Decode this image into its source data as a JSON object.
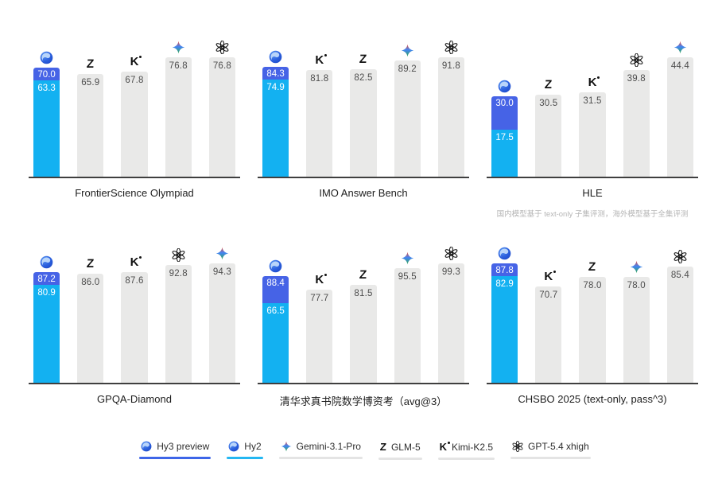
{
  "colors": {
    "hy3_blue": "#4663E6",
    "hy2_cyan": "#13B1F1",
    "bar_gray": "#E9E9E8",
    "axis": "#3F3F3F",
    "gray_label": "#4D4D4D",
    "legend_underline_gray": "#E4E4E4"
  },
  "icons": {
    "hunyuan": {
      "name": "hunyuan-sphere-icon"
    },
    "glm": {
      "name": "glm-z-icon",
      "glyph": "Z"
    },
    "kimi": {
      "name": "kimi-k-icon",
      "glyph": "K"
    },
    "gemini": {
      "name": "gemini-star-icon"
    },
    "openai": {
      "name": "openai-logo-icon"
    }
  },
  "chart_data": [
    {
      "type": "bar",
      "title": "FrontierScience Olympiad",
      "footnote": "",
      "ylim": [
        0,
        80
      ],
      "bars": [
        {
          "model": "hunyuan",
          "stacked": true,
          "series": [
            {
              "name": "Hy3 preview",
              "value": 70.0
            },
            {
              "name": "Hy2",
              "value": 63.3
            }
          ]
        },
        {
          "model": "glm",
          "name": "GLM-5",
          "value": 65.9
        },
        {
          "model": "kimi",
          "name": "Kimi-K2.5",
          "value": 67.8
        },
        {
          "model": "gemini",
          "name": "Gemini-3.1-Pro",
          "value": 76.8
        },
        {
          "model": "openai",
          "name": "GPT-5.4 xhigh",
          "value": 76.8
        }
      ]
    },
    {
      "type": "bar",
      "title": "IMO Answer Bench",
      "footnote": "",
      "ylim": [
        0,
        95
      ],
      "bars": [
        {
          "model": "hunyuan",
          "stacked": true,
          "series": [
            {
              "name": "Hy3 preview",
              "value": 84.3
            },
            {
              "name": "Hy2",
              "value": 74.9
            }
          ]
        },
        {
          "model": "kimi",
          "name": "Kimi-K2.5",
          "value": 81.8
        },
        {
          "model": "glm",
          "name": "GLM-5",
          "value": 82.5
        },
        {
          "model": "gemini",
          "name": "Gemini-3.1-Pro",
          "value": 89.2
        },
        {
          "model": "openai",
          "name": "GPT-5.4 xhigh",
          "value": 91.8
        }
      ]
    },
    {
      "type": "bar",
      "title": "HLE",
      "footnote": "国内模型基于 text-only 子集评测，海外模型基于全集评测",
      "ylim": [
        0,
        46
      ],
      "bars": [
        {
          "model": "hunyuan",
          "stacked": true,
          "series": [
            {
              "name": "Hy3 preview",
              "value": 30.0
            },
            {
              "name": "Hy2",
              "value": 17.5
            }
          ]
        },
        {
          "model": "glm",
          "name": "GLM-5",
          "value": 30.5
        },
        {
          "model": "kimi",
          "name": "Kimi-K2.5",
          "value": 31.5
        },
        {
          "model": "openai",
          "name": "GPT-5.4 xhigh",
          "value": 39.8
        },
        {
          "model": "gemini",
          "name": "Gemini-3.1-Pro",
          "value": 44.4
        }
      ]
    },
    {
      "type": "bar",
      "title": "GPQA-Diamond",
      "footnote": "",
      "ylim": [
        0,
        98
      ],
      "bars": [
        {
          "model": "hunyuan",
          "stacked": true,
          "series": [
            {
              "name": "Hy3 preview",
              "value": 87.2
            },
            {
              "name": "Hy2",
              "value": 80.9
            }
          ]
        },
        {
          "model": "glm",
          "name": "GLM-5",
          "value": 86.0
        },
        {
          "model": "kimi",
          "name": "Kimi-K2.5",
          "value": 87.6
        },
        {
          "model": "openai",
          "name": "GPT-5.4 xhigh",
          "value": 92.8
        },
        {
          "model": "gemini",
          "name": "Gemini-3.1-Pro",
          "value": 94.3
        }
      ]
    },
    {
      "type": "bar",
      "title": "清华求真书院数学博资考（avg@3）",
      "footnote": "",
      "ylim": [
        0,
        103
      ],
      "bars": [
        {
          "model": "hunyuan",
          "stacked": true,
          "series": [
            {
              "name": "Hy3 preview",
              "value": 88.4
            },
            {
              "name": "Hy2",
              "value": 66.5
            }
          ]
        },
        {
          "model": "kimi",
          "name": "Kimi-K2.5",
          "value": 77.7
        },
        {
          "model": "glm",
          "name": "GLM-5",
          "value": 81.5
        },
        {
          "model": "gemini",
          "name": "Gemini-3.1-Pro",
          "value": 95.5
        },
        {
          "model": "openai",
          "name": "GPT-5.4 xhigh",
          "value": 99.3
        }
      ]
    },
    {
      "type": "bar",
      "title": "CHSBO 2025 (text-only, pass^3)",
      "footnote": "",
      "ylim": [
        0,
        91
      ],
      "bars": [
        {
          "model": "hunyuan",
          "stacked": true,
          "series": [
            {
              "name": "Hy3 preview",
              "value": 87.8
            },
            {
              "name": "Hy2",
              "value": 82.9
            }
          ]
        },
        {
          "model": "kimi",
          "name": "Kimi-K2.5",
          "value": 70.7
        },
        {
          "model": "glm",
          "name": "GLM-5",
          "value": 78.0
        },
        {
          "model": "gemini",
          "name": "Gemini-3.1-Pro",
          "value": 78.0
        },
        {
          "model": "openai",
          "name": "GPT-5.4 xhigh",
          "value": 85.4
        }
      ]
    }
  ],
  "legend": {
    "items": [
      {
        "model": "hunyuan",
        "label": "Hy3 preview",
        "underline": "#3E66E8"
      },
      {
        "model": "hunyuan",
        "label": "Hy2",
        "underline": "#24B7F2"
      },
      {
        "model": "gemini",
        "label": "Gemini-3.1-Pro",
        "underline": "#E4E4E4"
      },
      {
        "model": "glm",
        "label": "GLM-5",
        "underline": "#E4E4E4"
      },
      {
        "model": "kimi",
        "label": "Kimi-K2.5",
        "underline": "#E4E4E4"
      },
      {
        "model": "openai",
        "label": "GPT-5.4 xhigh",
        "underline": "#E4E4E4"
      }
    ]
  }
}
